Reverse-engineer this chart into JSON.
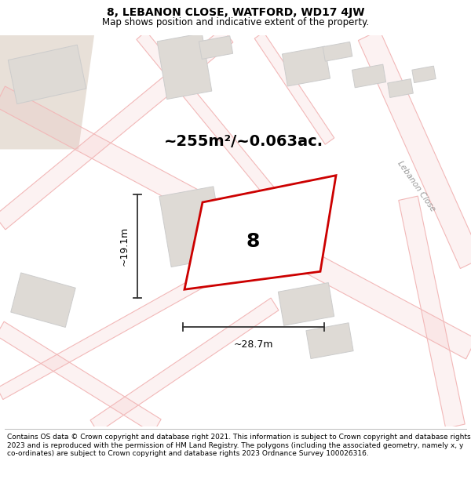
{
  "title": "8, LEBANON CLOSE, WATFORD, WD17 4JW",
  "subtitle": "Map shows position and indicative extent of the property.",
  "footer": "Contains OS data © Crown copyright and database right 2021. This information is subject to Crown copyright and database rights 2023 and is reproduced with the permission of HM Land Registry. The polygons (including the associated geometry, namely x, y co-ordinates) are subject to Crown copyright and database rights 2023 Ordnance Survey 100026316.",
  "area_text": "~255m²/~0.063ac.",
  "width_text": "~28.7m",
  "height_text": "~19.1m",
  "property_number": "8",
  "map_bg": "#ffffff",
  "road_color": "#f2b8b8",
  "building_fill": "#dedad5",
  "building_edge": "#cccccc",
  "property_fill": "#ffffff",
  "property_edge": "#cc0000",
  "dim_color": "#333333",
  "road_label": "Lebanon Close",
  "title_fontsize": 10,
  "subtitle_fontsize": 8.5,
  "footer_fontsize": 6.5,
  "beige_fill": "#e8e0d8"
}
